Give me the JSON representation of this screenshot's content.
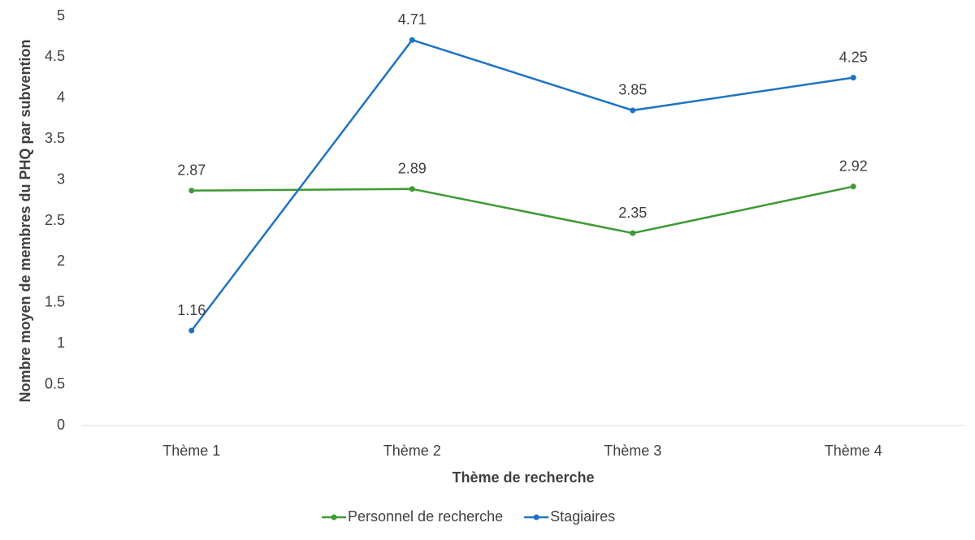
{
  "chart_data": {
    "type": "line",
    "x_label": "Thème de recherche",
    "y_label": "Nombre moyen de membres du PHQ par subvention",
    "categories": [
      "Thème 1",
      "Thème 2",
      "Thème 3",
      "Thème 4"
    ],
    "series": [
      {
        "name": "Personnel de recherche",
        "color": "#3f9a35",
        "values": [
          2.87,
          2.89,
          2.35,
          2.92
        ]
      },
      {
        "name": "Stagiaires",
        "color": "#1f73c4",
        "values": [
          1.16,
          4.71,
          3.85,
          4.25
        ]
      }
    ],
    "ylim": [
      0,
      5
    ],
    "yticks": [
      0,
      0.5,
      1,
      1.5,
      2,
      2.5,
      3,
      3.5,
      4,
      4.5,
      5
    ],
    "grid": false,
    "legend": "bottom"
  }
}
